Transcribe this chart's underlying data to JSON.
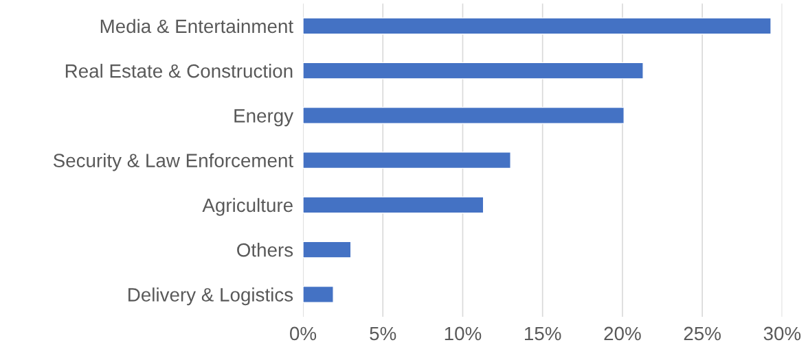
{
  "chart_data": {
    "type": "bar",
    "orientation": "horizontal",
    "categories": [
      "Media & Entertainment",
      "Real Estate & Construction",
      "Energy",
      "Security & Law Enforcement",
      "Agriculture",
      "Others",
      "Delivery & Logistics"
    ],
    "values": [
      29.3,
      21.3,
      20.1,
      13.0,
      11.3,
      3.0,
      1.9
    ],
    "color": "#4472c4",
    "xlim": [
      0,
      30
    ],
    "xticks": [
      {
        "value": 0,
        "label": "0%"
      },
      {
        "value": 5,
        "label": "5%"
      },
      {
        "value": 10,
        "label": "10%"
      },
      {
        "value": 15,
        "label": "15%"
      },
      {
        "value": 20,
        "label": "20%"
      },
      {
        "value": 25,
        "label": "25%"
      },
      {
        "value": 30,
        "label": "30%"
      }
    ],
    "grid": "x",
    "legend": false
  }
}
